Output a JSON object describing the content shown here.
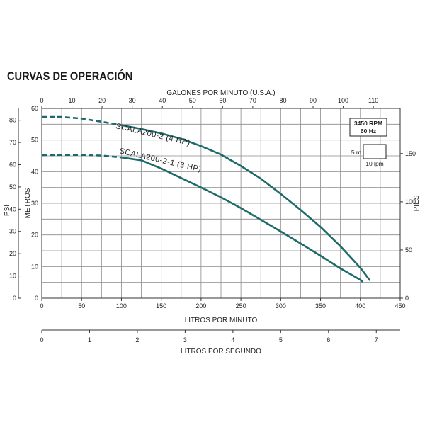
{
  "page_title": "CURVAS DE OPERACIÓN",
  "chart_data": {
    "type": "line",
    "title": "CURVAS DE OPERACIÓN",
    "axes": {
      "x_bottom": {
        "label": "LITROS POR MINUTO",
        "range": [
          0,
          450
        ],
        "ticks": [
          0,
          50,
          100,
          150,
          200,
          250,
          300,
          350,
          400,
          450
        ]
      },
      "x_top": {
        "label": "GALONES POR MINUTO (U.S.A.)",
        "range": [
          0,
          118.9
        ],
        "ticks": [
          0,
          10,
          20,
          30,
          40,
          50,
          60,
          70,
          80,
          90,
          100,
          110
        ]
      },
      "x_lps": {
        "label": "LITROS POR SEGUNDO",
        "range": [
          0,
          7.5
        ],
        "ticks": [
          0,
          1,
          2,
          3,
          4,
          5,
          6,
          7
        ]
      },
      "y_metros": {
        "label": "METROS",
        "range": [
          0,
          60
        ],
        "ticks": [
          0,
          10,
          20,
          30,
          40,
          50,
          60
        ]
      },
      "y_psi": {
        "label": "PSI",
        "range": [
          0,
          85.3
        ],
        "ticks": [
          0,
          10,
          20,
          30,
          40,
          50,
          60,
          70,
          80
        ]
      },
      "y_pies": {
        "label": "PIES",
        "range": [
          0,
          196.9
        ],
        "ticks": [
          0,
          50,
          100,
          150
        ]
      }
    },
    "grid": true,
    "info_box": {
      "rpm": "3450 RPM",
      "hz": "60 Hz"
    },
    "scale_legend": {
      "y_label": "5 m",
      "x_label": "10 lpm"
    },
    "series": [
      {
        "name": "SCALA200-2 (4 HP)",
        "dashed_x": [
          0,
          25,
          50,
          75,
          100
        ],
        "dashed_y": [
          57.3,
          57.3,
          56.8,
          55.8,
          54.7
        ],
        "x": [
          100,
          125,
          150,
          175,
          200,
          225,
          250,
          275,
          300,
          325,
          350,
          375,
          400,
          412
        ],
        "y": [
          54.7,
          53.5,
          52.1,
          50.4,
          48.1,
          45.4,
          41.8,
          37.8,
          33.0,
          27.9,
          22.5,
          16.4,
          9.6,
          5.6
        ]
      },
      {
        "name": "SCALA200-2-1 (3 HP)",
        "dashed_x": [
          0,
          25,
          50,
          75,
          100
        ],
        "dashed_y": [
          45.2,
          45.3,
          45.3,
          45.1,
          44.5
        ],
        "x": [
          100,
          125,
          150,
          175,
          200,
          225,
          250,
          275,
          300,
          325,
          350,
          375,
          400,
          403
        ],
        "y": [
          44.5,
          43.6,
          41.0,
          38.0,
          35.0,
          31.9,
          28.5,
          24.8,
          21.1,
          17.3,
          13.4,
          9.4,
          5.8,
          5.2
        ]
      }
    ]
  }
}
